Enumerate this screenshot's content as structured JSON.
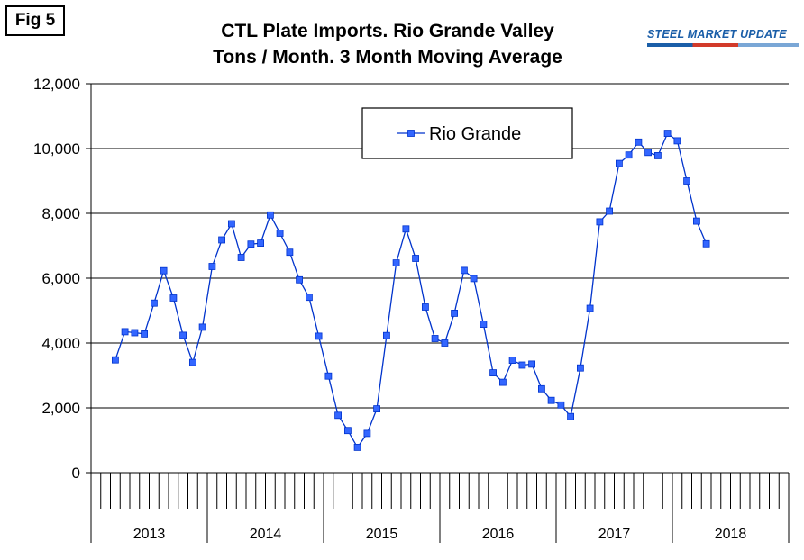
{
  "figure": {
    "badge": "Fig 5",
    "title_line1": "CTL Plate Imports. Rio Grande Valley",
    "title_line2": "Tons / Month. 3 Month Moving Average",
    "logo_text": "STEEL MARKET UPDATE"
  },
  "colors": {
    "series": "#0033cc",
    "marker_fill": "#3366ff",
    "grid": "#000000"
  },
  "chart_data": {
    "type": "line",
    "ylim": [
      0,
      12000
    ],
    "yticks": [
      0,
      2000,
      4000,
      6000,
      8000,
      10000,
      12000
    ],
    "ytick_labels": [
      "0",
      "2,000",
      "4,000",
      "6,000",
      "8,000",
      "10,000",
      "12,000"
    ],
    "years": [
      "2013",
      "2014",
      "2015",
      "2016",
      "2017",
      "2018"
    ],
    "months_per_year": 12,
    "grid": "horizontal",
    "legend": {
      "position": "top-center",
      "entries": [
        "Rio Grande"
      ]
    },
    "series": [
      {
        "name": "Rio Grande",
        "start_month_index": 2,
        "values": [
          3480,
          4350,
          4320,
          4280,
          5230,
          6230,
          5390,
          4240,
          3400,
          4490,
          6360,
          7180,
          7680,
          6640,
          7050,
          7080,
          7950,
          7390,
          6800,
          5950,
          5410,
          4210,
          2980,
          1770,
          1300,
          780,
          1210,
          1970,
          4230,
          6470,
          7520,
          6610,
          5110,
          4140,
          4000,
          4920,
          6240,
          5990,
          4580,
          3080,
          2790,
          3470,
          3320,
          3350,
          2590,
          2230,
          2090,
          1730,
          3230,
          5070,
          7740,
          8070,
          9540,
          9800,
          10200,
          9880,
          9780,
          10470,
          10240,
          9000,
          7760,
          7060
        ]
      }
    ]
  }
}
